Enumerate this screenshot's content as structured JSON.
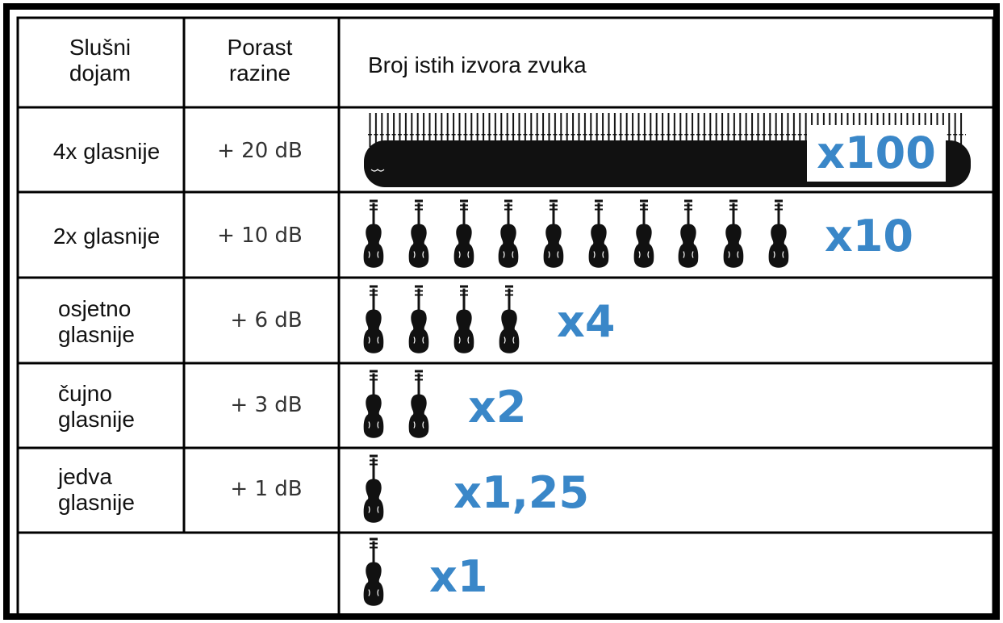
{
  "header": {
    "perception": [
      "Slušni",
      "dojam"
    ],
    "level": [
      "Porast",
      "razine"
    ],
    "sources": "Broj istih izvora zvuka"
  },
  "rows": [
    {
      "perception": [
        "4x glasnije"
      ],
      "level": "+ 20 dB",
      "multiplier": "x100"
    },
    {
      "perception": [
        "2x glasnije"
      ],
      "level": "+ 10 dB",
      "multiplier": "x10"
    },
    {
      "perception": [
        "osjetno",
        "glasnije"
      ],
      "level": "+ 6 dB",
      "multiplier": "x4"
    },
    {
      "perception": [
        "čujno",
        "glasnije"
      ],
      "level": "+ 3 dB",
      "multiplier": "x2"
    },
    {
      "perception": [
        "jedva",
        "glasnije"
      ],
      "level": "+ 1 dB",
      "multiplier": "x1,25"
    },
    {
      "multiplier": "x1"
    }
  ]
}
